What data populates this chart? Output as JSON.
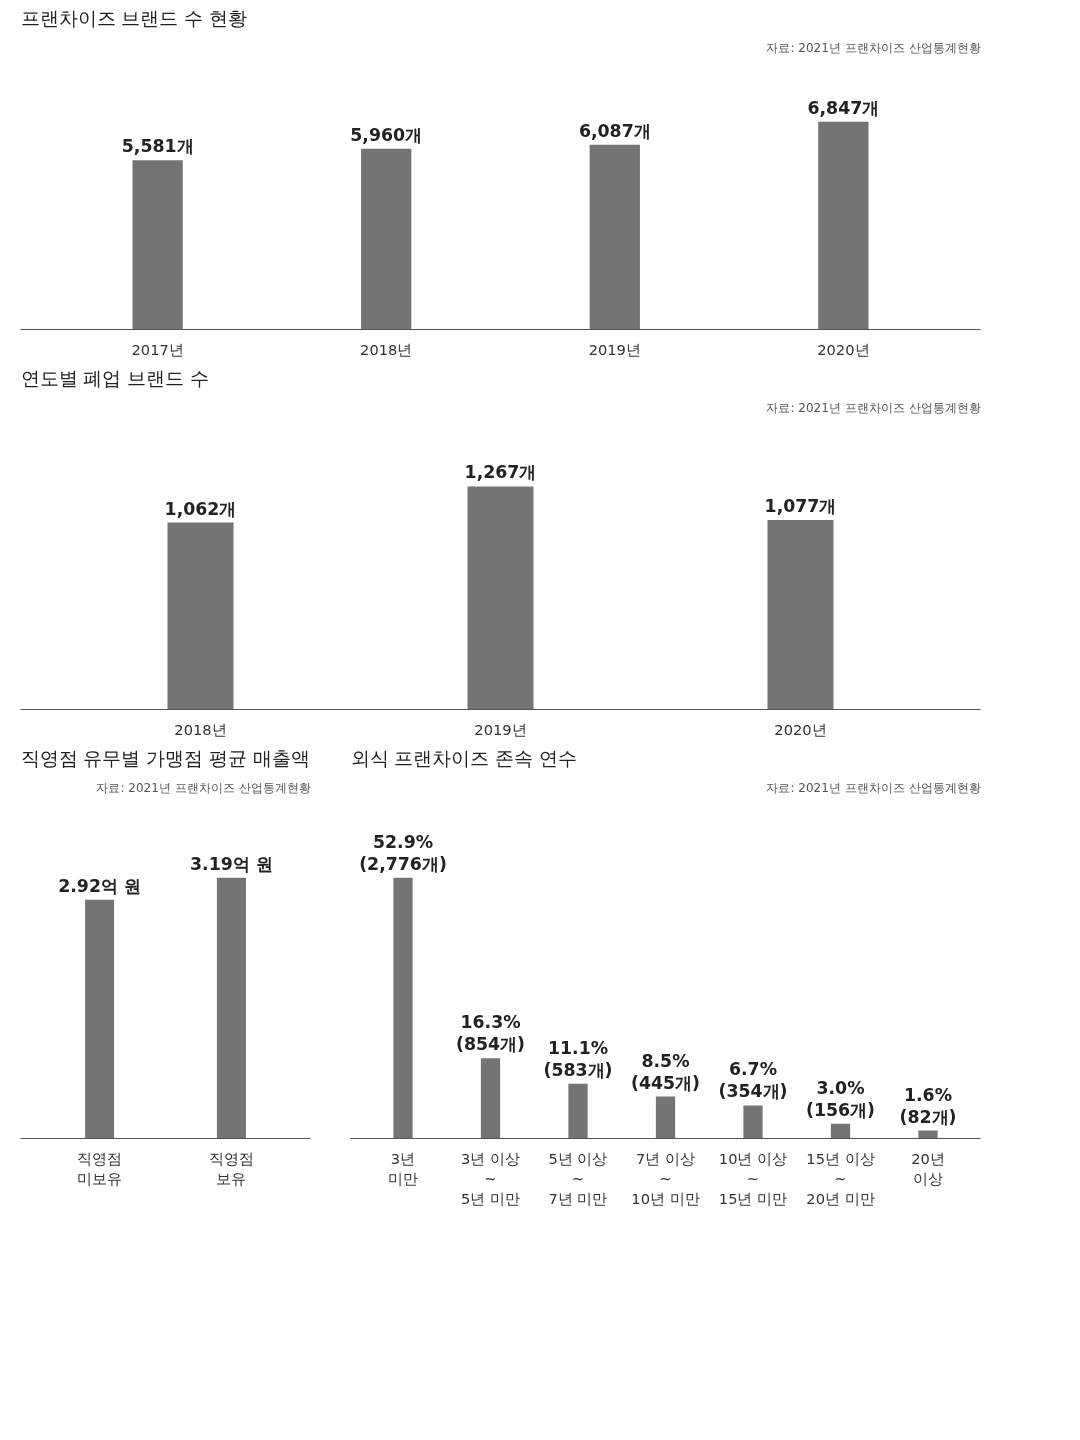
{
  "chart_data": [
    {
      "type": "bar",
      "title": "프랜차이즈 브랜드 수 현황",
      "annotations": [
        "자료: 2021년 프랜차이즈 산업통계현황"
      ],
      "categories": [
        "2017년",
        "2018년",
        "2019년",
        "2020년"
      ],
      "values": [
        5581,
        5960,
        6087,
        6847
      ],
      "value_labels": [
        "5,581개",
        "5,960개",
        "6,087개",
        "6,847개"
      ],
      "color": "#747474"
    },
    {
      "type": "bar",
      "title": "연도별 폐업 브랜드 수",
      "annotations": [
        "자료: 2021년 프랜차이즈 산업통계현황"
      ],
      "categories": [
        "2018년",
        "2019년",
        "2020년"
      ],
      "values": [
        1062,
        1267,
        1077
      ],
      "value_labels": [
        "1,062개",
        "1,267개",
        "1,077개"
      ],
      "color": "#747474"
    },
    {
      "type": "bar",
      "title": "직영점 유무별 가맹점 평균 매출액",
      "annotations": [
        "자료: 2021년 프랜차이즈 산업통계현황"
      ],
      "categories": [
        "직영점\n미보유",
        "직영점\n보유"
      ],
      "values": [
        2.92,
        3.19
      ],
      "value_labels": [
        "2.92억 원",
        "3.19억 원"
      ],
      "color": "#747474"
    },
    {
      "type": "bar",
      "title": "외식 프랜차이즈 존속 연수",
      "annotations": [
        "자료: 2021년 프랜차이즈 산업통계현황"
      ],
      "categories": [
        "3년\n미만",
        "3년 이상\n~\n5년 미만",
        "5년 이상\n~\n7년 미만",
        "7년 이상\n~\n10년 미만",
        "10년 이상\n~\n15년 미만",
        "15년 이상\n~\n20년 미만",
        "20년\n이상"
      ],
      "values": [
        52.9,
        16.3,
        11.1,
        8.5,
        6.7,
        3.0,
        1.6
      ],
      "value_labels": [
        "52.9%\n(2,776개)",
        "16.3%\n(854개)",
        "11.1%\n(583개)",
        "8.5%\n(445개)",
        "6.7%\n(354개)",
        "3.0%\n(156개)",
        "1.6%\n(82개)"
      ],
      "color": "#747474"
    }
  ]
}
